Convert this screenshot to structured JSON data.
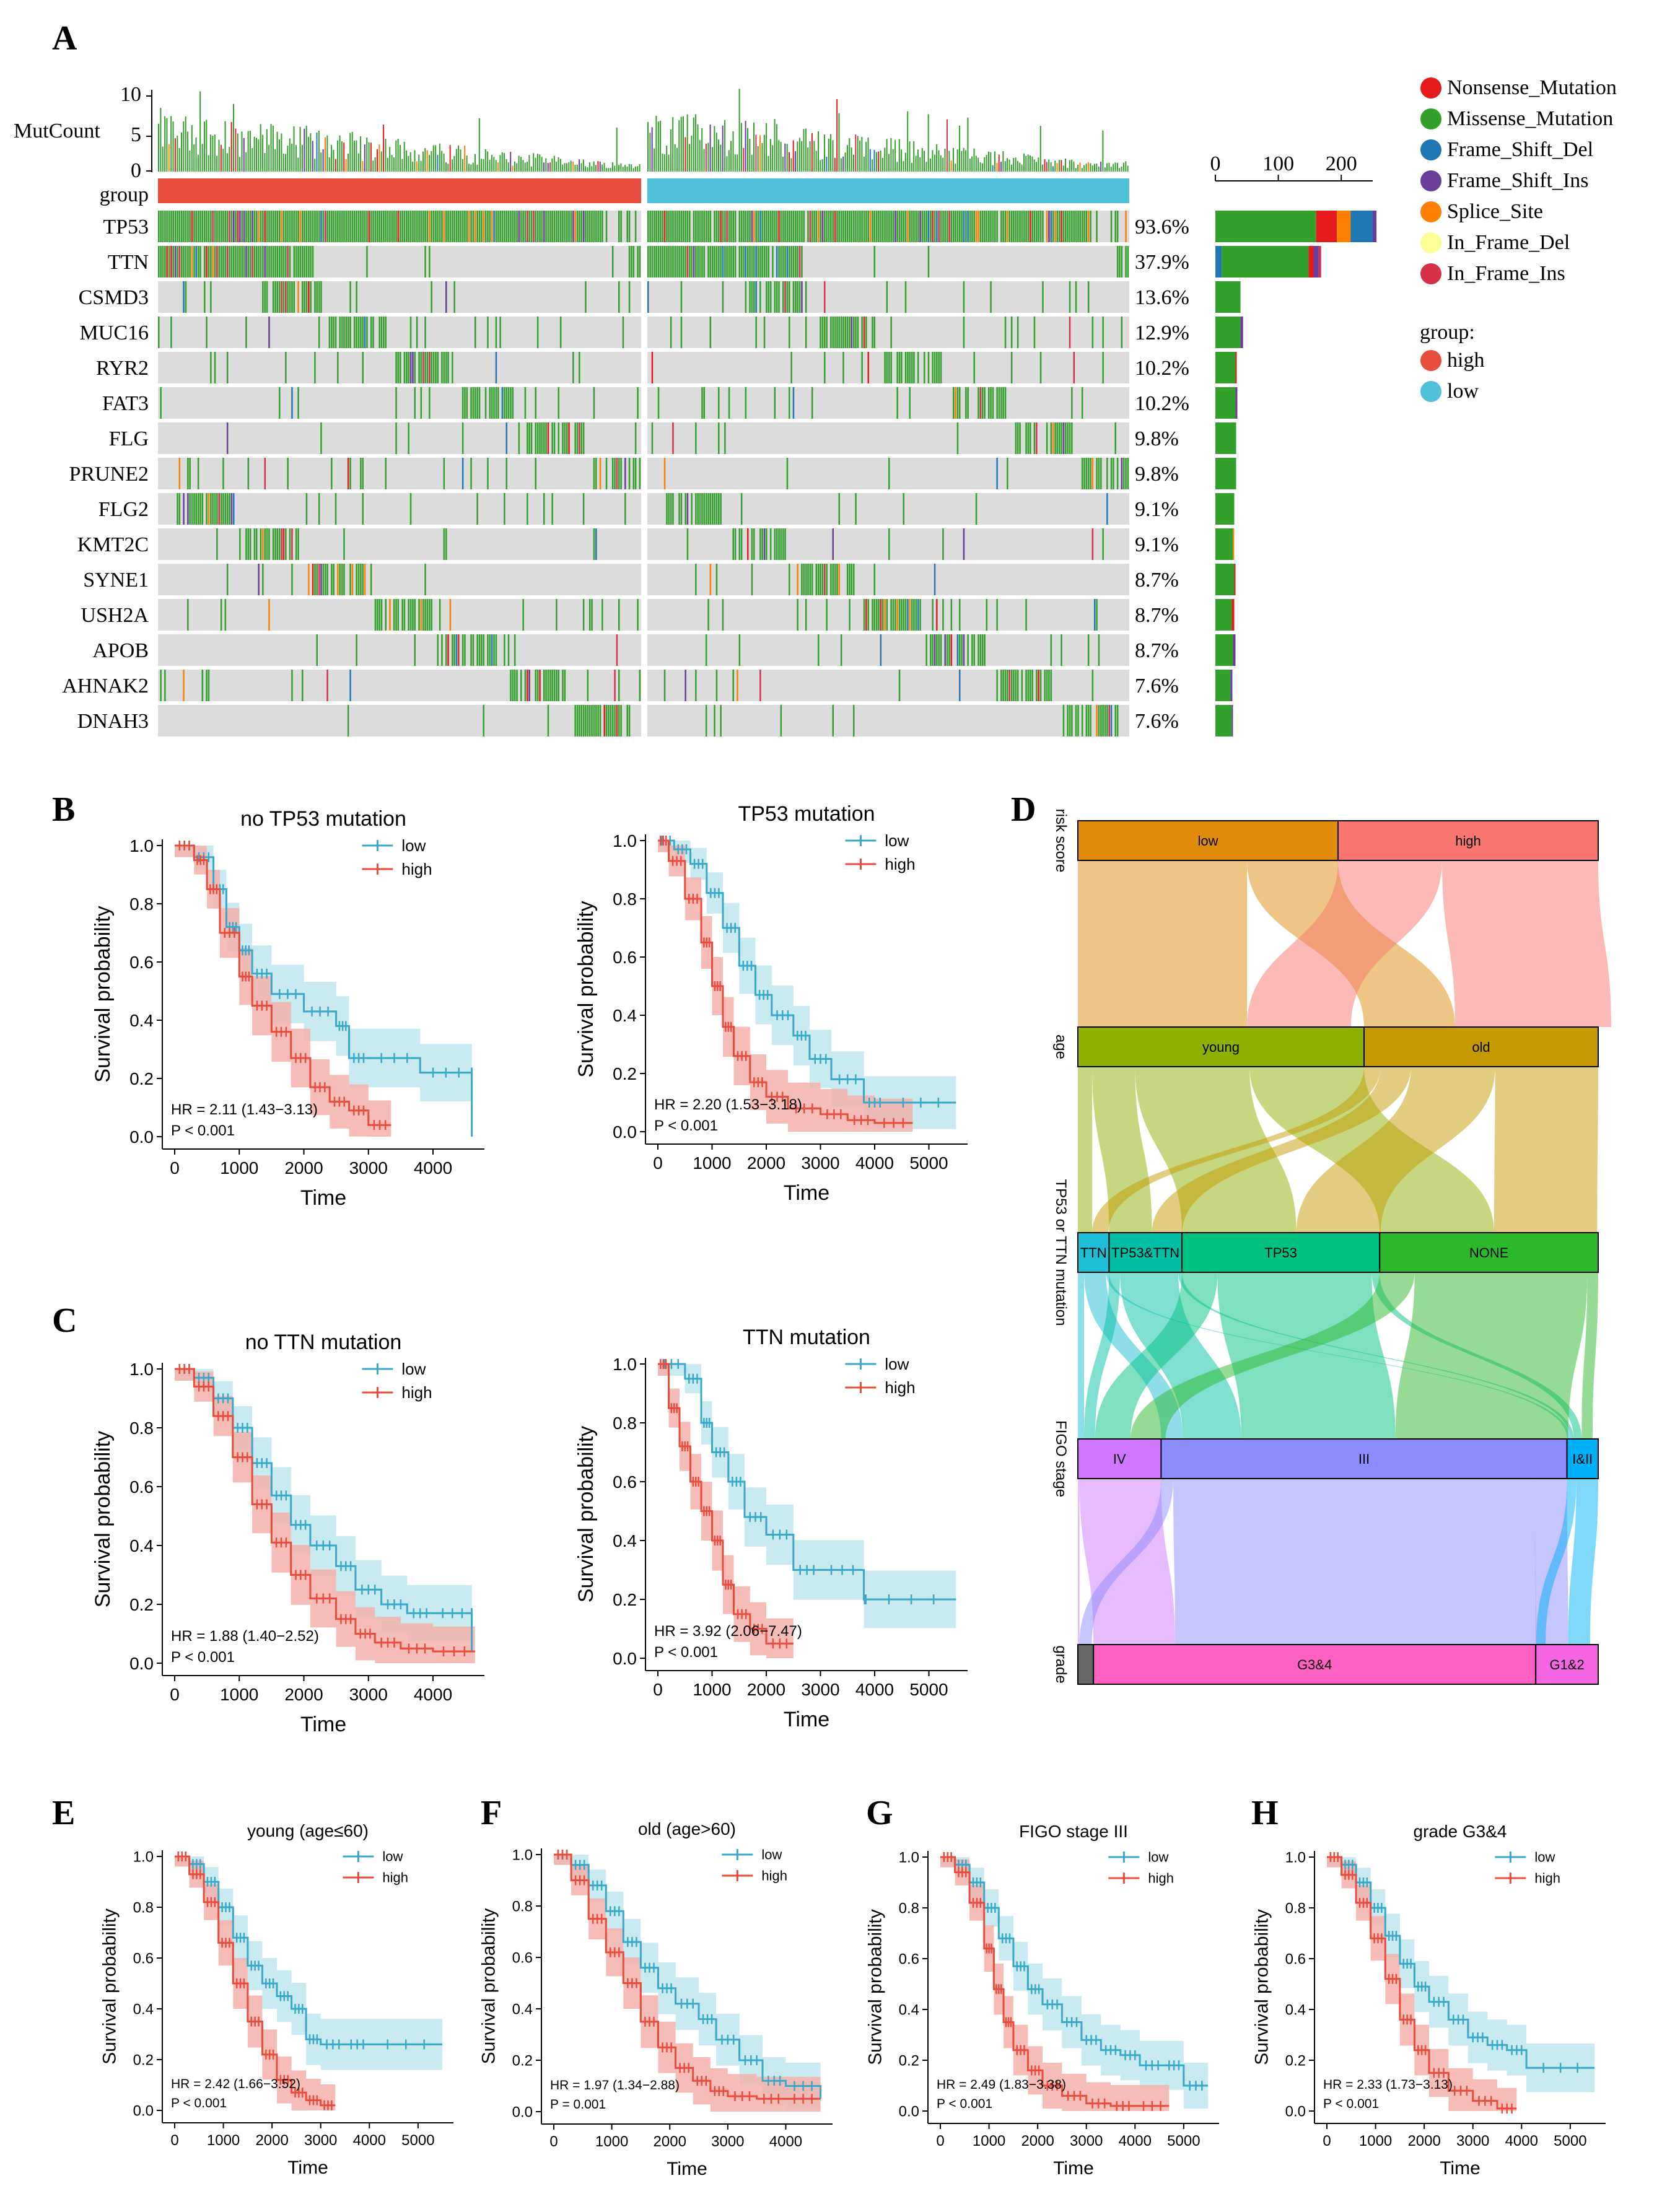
{
  "panels": {
    "A": "A",
    "B": "B",
    "C": "C",
    "D": "D",
    "E": "E",
    "F": "F",
    "G": "G",
    "H": "H"
  },
  "colors": {
    "Nonsense_Mutation": "#e41a1c",
    "Missense_Mutation": "#33a02c",
    "Frame_Shift_Del": "#1f78b4",
    "Frame_Shift_Ins": "#6a3d9a",
    "Splice_Site": "#ff7f00",
    "In_Frame_Del": "#ffff99",
    "In_Frame_Ins": "#d7304a",
    "high": "#e74c3c",
    "low": "#4fc1d9",
    "km_high": "#e74c3c",
    "km_low": "#3aa8c9",
    "band_high": "#f5b1ab",
    "band_low": "#bfe6ef",
    "empty": "#dcdcdc"
  },
  "oncoplot": {
    "mutcount_label": "MutCount",
    "mutcount_ticks": [
      "10",
      "5",
      "0"
    ],
    "group_label": "group",
    "genes": [
      "TP53",
      "TTN",
      "CSMD3",
      "MUC16",
      "RYR2",
      "FAT3",
      "FLG",
      "PRUNE2",
      "FLG2",
      "KMT2C",
      "SYNE1",
      "USH2A",
      "APOB",
      "AHNAK2",
      "DNAH3"
    ],
    "percents": [
      "93.6%",
      "37.9%",
      "13.6%",
      "12.9%",
      "10.2%",
      "10.2%",
      "9.8%",
      "9.8%",
      "9.1%",
      "9.1%",
      "8.7%",
      "8.7%",
      "8.7%",
      "7.6%",
      "7.6%"
    ],
    "bar_ticks": [
      "0",
      "100",
      "200"
    ],
    "gene_counts": [
      {
        "Missense_Mutation": 160,
        "Nonsense_Mutation": 33,
        "Splice_Site": 22,
        "Frame_Shift_Del": 35,
        "Frame_Shift_Ins": 6
      },
      {
        "Frame_Shift_Del": 10,
        "Missense_Mutation": 138,
        "Frame_Shift_Ins": 8,
        "Nonsense_Mutation": 8,
        "In_Frame_Ins": 4
      },
      {
        "Missense_Mutation": 40
      },
      {
        "Missense_Mutation": 40,
        "Frame_Shift_Ins": 4
      },
      {
        "Missense_Mutation": 32,
        "Nonsense_Mutation": 2
      },
      {
        "Missense_Mutation": 32,
        "Frame_Shift_Ins": 3
      },
      {
        "Missense_Mutation": 33
      },
      {
        "Missense_Mutation": 33
      },
      {
        "Missense_Mutation": 30
      },
      {
        "Missense_Mutation": 28,
        "Splice_Site": 2
      },
      {
        "Missense_Mutation": 30,
        "Nonsense_Mutation": 2
      },
      {
        "Missense_Mutation": 26,
        "Nonsense_Mutation": 4
      },
      {
        "Missense_Mutation": 28,
        "Frame_Shift_Ins": 4
      },
      {
        "Missense_Mutation": 24,
        "Frame_Shift_Ins": 3
      },
      {
        "Missense_Mutation": 26,
        "Frame_Shift_Ins": 2
      }
    ],
    "legend": [
      "Nonsense_Mutation",
      "Missense_Mutation",
      "Frame_Shift_Del",
      "Frame_Shift_Ins",
      "Splice_Site",
      "In_Frame_Del",
      "In_Frame_Ins"
    ],
    "group_legend_title": "group:",
    "group_legend": [
      "high",
      "low"
    ]
  },
  "chart_data": [
    {
      "panel": "B-left",
      "type": "line",
      "title": "no TP53 mutation",
      "xlabel": "Time",
      "ylabel": "Survival probability",
      "xlim": [
        0,
        4700
      ],
      "xticks": [
        0,
        1000,
        2000,
        3000,
        4000
      ],
      "ylim": [
        0,
        1
      ],
      "yticks": [
        "0.0",
        "0.2",
        "0.4",
        "0.6",
        "0.8",
        "1.0"
      ],
      "legend": [
        "low",
        "high"
      ],
      "hr": "HR = 2.11 (1.43−3.13)",
      "p": "P < 0.001",
      "series": [
        {
          "name": "low",
          "x": [
            0,
            300,
            600,
            800,
            1000,
            1200,
            1500,
            2000,
            2500,
            2700,
            3000,
            3800,
            4600,
            4600
          ],
          "y": [
            1.0,
            0.96,
            0.85,
            0.72,
            0.64,
            0.56,
            0.49,
            0.43,
            0.38,
            0.27,
            0.27,
            0.22,
            0.22,
            0.0
          ]
        },
        {
          "name": "high",
          "x": [
            0,
            300,
            500,
            700,
            1000,
            1200,
            1500,
            1800,
            2100,
            2400,
            2700,
            3000,
            3350
          ],
          "y": [
            1.0,
            0.95,
            0.85,
            0.7,
            0.55,
            0.45,
            0.36,
            0.27,
            0.17,
            0.12,
            0.09,
            0.04,
            0.04
          ]
        }
      ]
    },
    {
      "panel": "B-right",
      "type": "line",
      "title": "TP53 mutation",
      "xlabel": "Time",
      "ylabel": "Survival probability",
      "xlim": [
        0,
        5600
      ],
      "xticks": [
        0,
        1000,
        2000,
        3000,
        4000,
        5000
      ],
      "ylim": [
        0,
        1
      ],
      "yticks": [
        "0.0",
        "0.2",
        "0.4",
        "0.6",
        "0.8",
        "1.0"
      ],
      "legend": [
        "low",
        "high"
      ],
      "hr": "HR = 2.20 (1.53−3.18)",
      "p": "P < 0.001",
      "series": [
        {
          "name": "low",
          "x": [
            0,
            300,
            600,
            900,
            1200,
            1500,
            1800,
            2100,
            2500,
            2800,
            3200,
            3800,
            4200,
            5500
          ],
          "y": [
            1.0,
            0.97,
            0.92,
            0.82,
            0.7,
            0.57,
            0.47,
            0.4,
            0.33,
            0.25,
            0.18,
            0.1,
            0.1,
            0.1
          ]
        },
        {
          "name": "high",
          "x": [
            0,
            200,
            500,
            800,
            1000,
            1200,
            1400,
            1700,
            2000,
            2400,
            3000,
            3500,
            4000,
            4700
          ],
          "y": [
            1.0,
            0.93,
            0.8,
            0.65,
            0.5,
            0.36,
            0.26,
            0.17,
            0.12,
            0.08,
            0.06,
            0.04,
            0.03,
            0.03
          ]
        }
      ]
    },
    {
      "panel": "C-left",
      "type": "line",
      "title": "no TTN mutation",
      "xlabel": "Time",
      "ylabel": "Survival probability",
      "xlim": [
        0,
        4700
      ],
      "xticks": [
        0,
        1000,
        2000,
        3000,
        4000
      ],
      "ylim": [
        0,
        1
      ],
      "yticks": [
        "0.0",
        "0.2",
        "0.4",
        "0.6",
        "0.8",
        "1.0"
      ],
      "legend": [
        "low",
        "high"
      ],
      "hr": "HR = 1.88 (1.40−2.52)",
      "p": "P < 0.001",
      "series": [
        {
          "name": "low",
          "x": [
            0,
            300,
            600,
            900,
            1200,
            1500,
            1800,
            2100,
            2500,
            2800,
            3200,
            3600,
            4000,
            4600,
            4600
          ],
          "y": [
            1.0,
            0.97,
            0.9,
            0.8,
            0.68,
            0.57,
            0.47,
            0.4,
            0.33,
            0.25,
            0.2,
            0.17,
            0.17,
            0.17,
            0.04
          ]
        },
        {
          "name": "high",
          "x": [
            0,
            300,
            600,
            900,
            1200,
            1500,
            1800,
            2100,
            2500,
            2800,
            3100,
            3500,
            4000,
            4650
          ],
          "y": [
            1.0,
            0.94,
            0.84,
            0.7,
            0.54,
            0.41,
            0.3,
            0.22,
            0.15,
            0.1,
            0.07,
            0.05,
            0.04,
            0.04
          ]
        }
      ]
    },
    {
      "panel": "C-right",
      "type": "line",
      "title": "TTN mutation",
      "xlabel": "Time",
      "ylabel": "Survival probability",
      "xlim": [
        0,
        5600
      ],
      "xticks": [
        0,
        1000,
        2000,
        3000,
        4000,
        5000
      ],
      "ylim": [
        0,
        1
      ],
      "yticks": [
        "0.0",
        "0.2",
        "0.4",
        "0.6",
        "0.8",
        "1.0"
      ],
      "legend": [
        "low",
        "high"
      ],
      "hr": "HR = 3.92 (2.06−7.47)",
      "p": "P < 0.001",
      "series": [
        {
          "name": "low",
          "x": [
            0,
            500,
            800,
            1000,
            1300,
            1600,
            2000,
            2500,
            3000,
            3800,
            3850,
            5500
          ],
          "y": [
            1.0,
            0.95,
            0.8,
            0.7,
            0.6,
            0.48,
            0.42,
            0.3,
            0.3,
            0.2,
            0.2,
            0.2
          ]
        },
        {
          "name": "high",
          "x": [
            0,
            200,
            400,
            600,
            800,
            1000,
            1200,
            1400,
            1700,
            2000,
            2500
          ],
          "y": [
            1.0,
            0.85,
            0.72,
            0.6,
            0.5,
            0.4,
            0.25,
            0.15,
            0.1,
            0.05,
            0.05
          ]
        }
      ]
    },
    {
      "panel": "E",
      "type": "line",
      "title": "young (age≤60)",
      "xlabel": "Time",
      "ylabel": "Survival probability",
      "xlim": [
        0,
        5600
      ],
      "xticks": [
        0,
        1000,
        2000,
        3000,
        4000,
        5000
      ],
      "ylim": [
        0,
        1
      ],
      "yticks": [
        "0.0",
        "0.2",
        "0.4",
        "0.6",
        "0.8",
        "1.0"
      ],
      "legend": [
        "low",
        "high"
      ],
      "hr": "HR = 2.42 (1.66−3.52)",
      "p": "P < 0.001",
      "series": [
        {
          "name": "low",
          "x": [
            0,
            300,
            600,
            900,
            1200,
            1500,
            1800,
            2100,
            2400,
            2700,
            3000,
            3500,
            4000,
            5500
          ],
          "y": [
            1.0,
            0.97,
            0.9,
            0.8,
            0.68,
            0.57,
            0.5,
            0.45,
            0.4,
            0.28,
            0.26,
            0.26,
            0.26,
            0.26
          ]
        },
        {
          "name": "high",
          "x": [
            0,
            300,
            600,
            900,
            1200,
            1500,
            1800,
            2100,
            2400,
            2700,
            3000,
            3300
          ],
          "y": [
            1.0,
            0.93,
            0.82,
            0.66,
            0.5,
            0.35,
            0.22,
            0.12,
            0.07,
            0.04,
            0.02,
            0.02
          ]
        }
      ]
    },
    {
      "panel": "F",
      "type": "line",
      "title": "old (age>60)",
      "xlabel": "Time",
      "ylabel": "Survival probability",
      "xlim": [
        0,
        4700
      ],
      "xticks": [
        0,
        1000,
        2000,
        3000,
        4000
      ],
      "ylim": [
        0,
        1
      ],
      "yticks": [
        "0.0",
        "0.2",
        "0.4",
        "0.6",
        "0.8",
        "1.0"
      ],
      "legend": [
        "low",
        "high"
      ],
      "hr": "HR = 1.97 (1.34−2.88)",
      "p": "P = 0.001",
      "series": [
        {
          "name": "low",
          "x": [
            0,
            300,
            600,
            900,
            1200,
            1500,
            1800,
            2100,
            2500,
            2800,
            3200,
            3600,
            4000,
            4600
          ],
          "y": [
            1.0,
            0.96,
            0.88,
            0.78,
            0.66,
            0.56,
            0.48,
            0.42,
            0.36,
            0.28,
            0.2,
            0.12,
            0.1,
            0.05
          ]
        },
        {
          "name": "high",
          "x": [
            0,
            300,
            600,
            900,
            1200,
            1500,
            1800,
            2100,
            2400,
            2700,
            3000,
            3500,
            4000,
            4600
          ],
          "y": [
            1.0,
            0.9,
            0.75,
            0.62,
            0.5,
            0.35,
            0.25,
            0.17,
            0.12,
            0.08,
            0.06,
            0.05,
            0.05,
            0.05
          ]
        }
      ]
    },
    {
      "panel": "G",
      "type": "line",
      "title": "FIGO stage III",
      "xlabel": "Time",
      "ylabel": "Survival probability",
      "xlim": [
        0,
        5600
      ],
      "xticks": [
        0,
        1000,
        2000,
        3000,
        4000,
        5000
      ],
      "ylim": [
        0,
        1
      ],
      "yticks": [
        "0.0",
        "0.2",
        "0.4",
        "0.6",
        "0.8",
        "1.0"
      ],
      "legend": [
        "low",
        "high"
      ],
      "hr": "HR = 2.49 (1.83−3.38)",
      "p": "P < 0.001",
      "series": [
        {
          "name": "low",
          "x": [
            0,
            300,
            600,
            900,
            1200,
            1500,
            1800,
            2100,
            2500,
            2900,
            3300,
            3700,
            4100,
            4600,
            5000,
            5500
          ],
          "y": [
            1.0,
            0.97,
            0.9,
            0.8,
            0.68,
            0.57,
            0.48,
            0.42,
            0.35,
            0.28,
            0.24,
            0.22,
            0.18,
            0.18,
            0.1,
            0.1
          ]
        },
        {
          "name": "high",
          "x": [
            0,
            300,
            600,
            900,
            1100,
            1300,
            1500,
            1800,
            2100,
            2500,
            3000,
            3500,
            4000,
            4700
          ],
          "y": [
            1.0,
            0.94,
            0.82,
            0.64,
            0.48,
            0.35,
            0.24,
            0.16,
            0.1,
            0.06,
            0.03,
            0.02,
            0.02,
            0.02
          ]
        }
      ]
    },
    {
      "panel": "H",
      "type": "line",
      "title": "grade G3&4",
      "xlabel": "Time",
      "ylabel": "Survival probability",
      "xlim": [
        0,
        5600
      ],
      "xticks": [
        0,
        1000,
        2000,
        3000,
        4000,
        5000
      ],
      "ylim": [
        0,
        1
      ],
      "yticks": [
        "0.0",
        "0.2",
        "0.4",
        "0.6",
        "0.8",
        "1.0"
      ],
      "legend": [
        "low",
        "high"
      ],
      "hr": "HR = 2.33 (1.73−3.13)",
      "p": "P < 0.001",
      "series": [
        {
          "name": "low",
          "x": [
            0,
            300,
            600,
            900,
            1200,
            1500,
            1800,
            2100,
            2500,
            2900,
            3300,
            3700,
            4100,
            5500
          ],
          "y": [
            1.0,
            0.97,
            0.9,
            0.8,
            0.69,
            0.58,
            0.49,
            0.43,
            0.36,
            0.29,
            0.26,
            0.24,
            0.17,
            0.17
          ]
        },
        {
          "name": "high",
          "x": [
            0,
            300,
            600,
            900,
            1200,
            1500,
            1800,
            2100,
            2500,
            3000,
            3500,
            3900
          ],
          "y": [
            1.0,
            0.93,
            0.82,
            0.68,
            0.52,
            0.36,
            0.24,
            0.15,
            0.08,
            0.04,
            0.01,
            0.01
          ]
        }
      ]
    },
    {
      "panel": "D",
      "type": "sankey",
      "axes": [
        {
          "label": "risk score",
          "nodes": [
            {
              "name": "low",
              "value": 50,
              "color": "#e08b0b"
            },
            {
              "name": "high",
              "value": 50,
              "color": "#f8766d"
            }
          ]
        },
        {
          "label": "age",
          "nodes": [
            {
              "name": "young",
              "value": 55,
              "color": "#8fb000"
            },
            {
              "name": "old",
              "value": 45,
              "color": "#c49a00"
            }
          ]
        },
        {
          "label": "TP53 or TTN mutation",
          "nodes": [
            {
              "name": "TTN",
              "value": 6,
              "color": "#1ebed6"
            },
            {
              "name": "TP53&TTN",
              "value": 14,
              "color": "#00bfa4"
            },
            {
              "name": "TP53",
              "value": 38,
              "color": "#00c180"
            },
            {
              "name": "NONE",
              "value": 42,
              "color": "#2bb82b"
            }
          ]
        },
        {
          "label": "FIGO stage",
          "nodes": [
            {
              "name": "IV",
              "value": 16,
              "color": "#cf78ff"
            },
            {
              "name": "III",
              "value": 78,
              "color": "#8b8cff"
            },
            {
              "name": "I&II",
              "value": 6,
              "color": "#00b0f6"
            }
          ]
        },
        {
          "label": "grade",
          "nodes": [
            {
              "name": "",
              "value": 3,
              "color": "#666666"
            },
            {
              "name": "G3&4",
              "value": 85,
              "color": "#ff61c3"
            },
            {
              "name": "G1&2",
              "value": 12,
              "color": "#f564e3"
            }
          ]
        }
      ]
    }
  ]
}
